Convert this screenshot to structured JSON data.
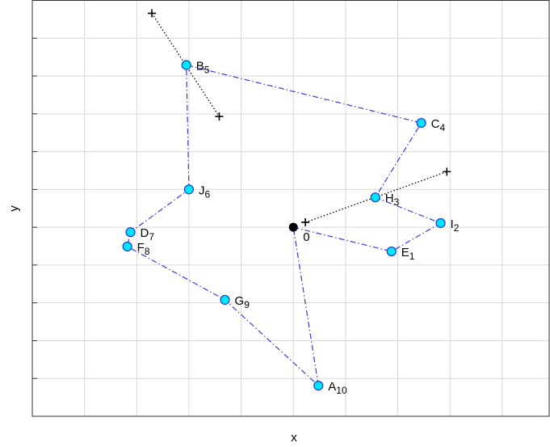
{
  "chart_data": {
    "type": "route",
    "xlabel": "x",
    "ylabel": "y",
    "xlim": [
      -5,
      4.9
    ],
    "ylim": [
      -5,
      6
    ],
    "xticks": [
      -4,
      -3,
      -2,
      -1,
      0,
      1,
      2,
      3,
      4
    ],
    "yticks": [
      -4,
      -3,
      -2,
      -1,
      0,
      1,
      2,
      3,
      4,
      5
    ],
    "grid": true,
    "route_color": "#3a3ae0",
    "stop_color": "#00e5ff",
    "depot_color": "#000000",
    "depot": {
      "label": "0",
      "x": 0,
      "y": 0
    },
    "stops": [
      {
        "name": "E",
        "sub": "1",
        "x": 1.88,
        "y": -0.64
      },
      {
        "name": "I",
        "sub": "2",
        "x": 2.82,
        "y": 0.11
      },
      {
        "name": "H",
        "sub": "3",
        "x": 1.57,
        "y": 0.79
      },
      {
        "name": "C",
        "sub": "4",
        "x": 2.45,
        "y": 2.76
      },
      {
        "name": "B",
        "sub": "5",
        "x": -2.05,
        "y": 4.29
      },
      {
        "name": "J",
        "sub": "6",
        "x": -2.0,
        "y": 1.0
      },
      {
        "name": "D",
        "sub": "7",
        "x": -3.12,
        "y": -0.13
      },
      {
        "name": "F",
        "sub": "8",
        "x": -3.18,
        "y": -0.51
      },
      {
        "name": "G",
        "sub": "9",
        "x": -1.31,
        "y": -1.92
      },
      {
        "name": "A",
        "sub": "10",
        "x": 0.48,
        "y": -4.19
      }
    ],
    "segments": [
      {
        "x": [
          -2.71,
          -1.42
        ],
        "y": [
          5.66,
          2.93
        ]
      },
      {
        "x": [
          0.23,
          2.94
        ],
        "y": [
          0.13,
          1.47
        ]
      }
    ]
  }
}
